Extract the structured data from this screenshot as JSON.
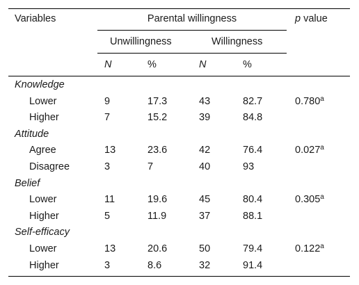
{
  "table": {
    "headers": {
      "variables": "Variables",
      "parental_willingness": "Parental willingness",
      "p_symbol": "p",
      "p_text": " value",
      "unwillingness": "Unwillingness",
      "willingness": "Willingness",
      "n": "N",
      "pct": "%"
    },
    "groups": [
      {
        "name": "Knowledge",
        "rows": [
          {
            "label": "Lower",
            "n_unw": "9",
            "pct_unw": "17.3",
            "n_w": "43",
            "pct_w": "82.7",
            "p": "0.780",
            "sup": "a"
          },
          {
            "label": "Higher",
            "n_unw": "7",
            "pct_unw": "15.2",
            "n_w": "39",
            "pct_w": "84.8",
            "p": "",
            "sup": ""
          }
        ]
      },
      {
        "name": "Attitude",
        "rows": [
          {
            "label": "Agree",
            "n_unw": "13",
            "pct_unw": "23.6",
            "n_w": "42",
            "pct_w": "76.4",
            "p": "0.027",
            "sup": "a"
          },
          {
            "label": "Disagree",
            "n_unw": "3",
            "pct_unw": "7",
            "n_w": "40",
            "pct_w": "93",
            "p": "",
            "sup": ""
          }
        ]
      },
      {
        "name": "Belief",
        "rows": [
          {
            "label": "Lower",
            "n_unw": "11",
            "pct_unw": "19.6",
            "n_w": "45",
            "pct_w": "80.4",
            "p": "0.305",
            "sup": "a"
          },
          {
            "label": "Higher",
            "n_unw": "5",
            "pct_unw": "11.9",
            "n_w": "37",
            "pct_w": "88.1",
            "p": "",
            "sup": ""
          }
        ]
      },
      {
        "name": "Self-efficacy",
        "rows": [
          {
            "label": "Lower",
            "n_unw": "13",
            "pct_unw": "20.6",
            "n_w": "50",
            "pct_w": "79.4",
            "p": "0.122",
            "sup": "a"
          },
          {
            "label": "Higher",
            "n_unw": "3",
            "pct_unw": "8.6",
            "n_w": "32",
            "pct_w": "91.4",
            "p": "",
            "sup": ""
          }
        ]
      }
    ]
  }
}
